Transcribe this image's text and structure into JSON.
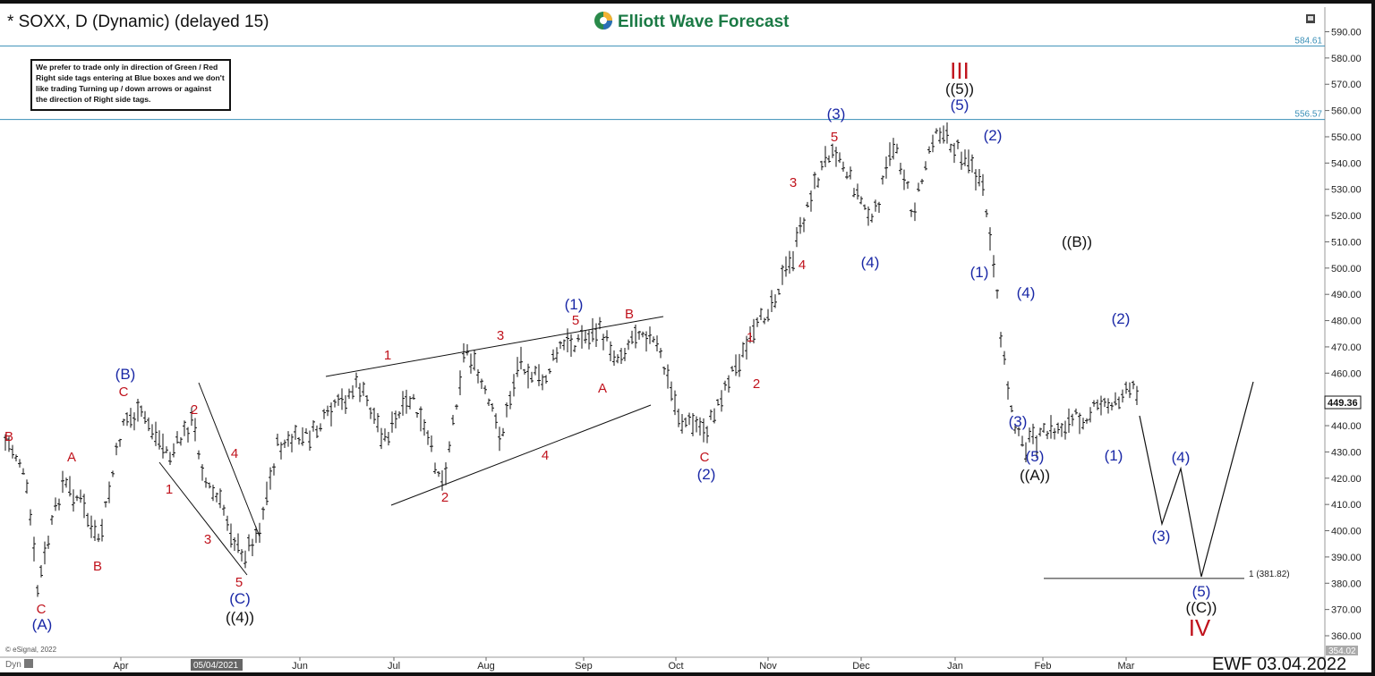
{
  "header": {
    "title": "* SOXX, D (Dynamic) (delayed 15)",
    "logo_text": "Elliott Wave Forecast"
  },
  "note_box": {
    "lines": [
      "We prefer to trade only in direction of Green / Red",
      "Right side tags entering at Blue boxes and we don't",
      "like trading Turning up / down arrows or against",
      "the direction of Right side tags."
    ]
  },
  "footer": {
    "stamp": "EWF 03.04.2022",
    "copyright": "© eSignal, 2022",
    "dyn": "Dyn",
    "date_marker": "05/04/2021"
  },
  "colors": {
    "red_label": "#c0121c",
    "blue_label": "#1a28a6",
    "level_line": "#3a8fb7",
    "bars": "#111111"
  },
  "chart_data": {
    "type": "ohlc",
    "ylim": [
      354.02,
      597
    ],
    "y_ticks": [
      360,
      370,
      380,
      390,
      400,
      410,
      420,
      430,
      440,
      450,
      460,
      470,
      480,
      490,
      500,
      510,
      520,
      530,
      540,
      550,
      560,
      570,
      580,
      590
    ],
    "x_ticks": [
      "Apr",
      "Jun",
      "Jul",
      "Aug",
      "Sep",
      "Oct",
      "Nov",
      "Dec",
      "Jan",
      "Feb",
      "Mar"
    ],
    "last_price": "449.36",
    "bottom_value": "354.02",
    "levels": [
      {
        "value": 584.61,
        "label": "584.61"
      },
      {
        "value": 556.57,
        "label": "556.57"
      }
    ],
    "fib_level": {
      "value": 381.82,
      "label": "1 (381.82)"
    },
    "price_path_x": [
      "Mar 2021",
      "Mar 2021",
      "Mar 2021",
      "Mar 2021",
      "Mar 2021",
      "Apr 2021",
      "Apr 2021",
      "Apr 2021",
      "Apr 2021",
      "May 2021",
      "May 2021",
      "May 2021",
      "May 2021",
      "Jun 2021",
      "Jun 2021",
      "Jul 2021",
      "Jul 2021",
      "Jul 2021",
      "Aug 2021",
      "Aug 2021",
      "Aug 2021",
      "Sep 2021",
      "Sep 2021",
      "Sep 2021",
      "Sep 2021",
      "Oct 2021",
      "Oct 2021",
      "Oct 2021",
      "Oct 2021",
      "Nov 2021",
      "Nov 2021",
      "Nov 2021",
      "Nov 2021",
      "Dec 2021",
      "Dec 2021",
      "Dec 2021",
      "Dec 2021",
      "Jan 2022",
      "Jan 2022",
      "Jan 2022",
      "Jan 2022",
      "Jan 2022",
      "Jan 2022",
      "Jan 2022",
      "Feb 2022",
      "Feb 2022",
      "Feb 2022",
      "Feb 2022",
      "Feb 2022",
      "Feb 2022",
      "Mar 2022"
    ],
    "price_path": [
      432,
      420,
      405,
      375,
      398,
      420,
      410,
      395,
      447,
      440,
      425,
      440,
      420,
      410,
      385,
      395,
      430,
      440,
      445,
      420,
      450,
      470,
      455,
      445,
      432,
      450,
      470,
      465,
      465,
      475,
      470,
      478,
      470,
      435,
      445,
      460,
      470,
      480,
      500,
      512,
      540,
      520,
      548,
      530,
      545,
      555,
      540,
      548,
      554,
      556,
      545
    ],
    "projection_path": [
      {
        "x": "Mar 2022",
        "y": 440
      },
      {
        "x": "Mar 2022",
        "y": 403
      },
      {
        "x": "Mar 2022",
        "y": 424
      },
      {
        "x": "Apr 2022",
        "y": 382
      },
      {
        "x": "Apr 2022",
        "y": 457
      }
    ],
    "wave_labels": [
      {
        "text": "B",
        "color": "red"
      },
      {
        "text": "C",
        "color": "red"
      },
      {
        "text": "(A)",
        "color": "blue"
      },
      {
        "text": "A",
        "color": "red"
      },
      {
        "text": "B",
        "color": "red"
      },
      {
        "text": "(B)",
        "color": "blue"
      },
      {
        "text": "C",
        "color": "red"
      },
      {
        "text": "1",
        "color": "red"
      },
      {
        "text": "2",
        "color": "red"
      },
      {
        "text": "3",
        "color": "red"
      },
      {
        "text": "4",
        "color": "red"
      },
      {
        "text": "5",
        "color": "red"
      },
      {
        "text": "(C)",
        "color": "blue"
      },
      {
        "text": "((4))",
        "color": "black"
      },
      {
        "text": "1",
        "color": "red"
      },
      {
        "text": "2",
        "color": "red"
      },
      {
        "text": "3",
        "color": "red"
      },
      {
        "text": "4",
        "color": "red"
      },
      {
        "text": "5",
        "color": "red"
      },
      {
        "text": "(1)",
        "color": "blue"
      },
      {
        "text": "A",
        "color": "red"
      },
      {
        "text": "B",
        "color": "red"
      },
      {
        "text": "C",
        "color": "red"
      },
      {
        "text": "(2)",
        "color": "blue"
      },
      {
        "text": "1",
        "color": "red"
      },
      {
        "text": "2",
        "color": "red"
      },
      {
        "text": "3",
        "color": "red"
      },
      {
        "text": "4",
        "color": "red"
      },
      {
        "text": "5",
        "color": "red"
      },
      {
        "text": "(3)",
        "color": "blue"
      },
      {
        "text": "(4)",
        "color": "blue"
      },
      {
        "text": "(5)",
        "color": "blue"
      },
      {
        "text": "((5))",
        "color": "black"
      },
      {
        "text": "III",
        "color": "red"
      },
      {
        "text": "(1)",
        "color": "blue"
      },
      {
        "text": "(2)",
        "color": "blue"
      },
      {
        "text": "(3)",
        "color": "blue"
      },
      {
        "text": "(4)",
        "color": "blue"
      },
      {
        "text": "(5)",
        "color": "blue"
      },
      {
        "text": "((A))",
        "color": "black"
      },
      {
        "text": "((B))",
        "color": "black"
      },
      {
        "text": "(1)",
        "color": "blue"
      },
      {
        "text": "(2)",
        "color": "blue"
      },
      {
        "text": "(3)",
        "color": "blue"
      },
      {
        "text": "(4)",
        "color": "blue"
      },
      {
        "text": "(5)",
        "color": "blue"
      },
      {
        "text": "((C))",
        "color": "black"
      },
      {
        "text": "IV",
        "color": "red"
      }
    ]
  }
}
